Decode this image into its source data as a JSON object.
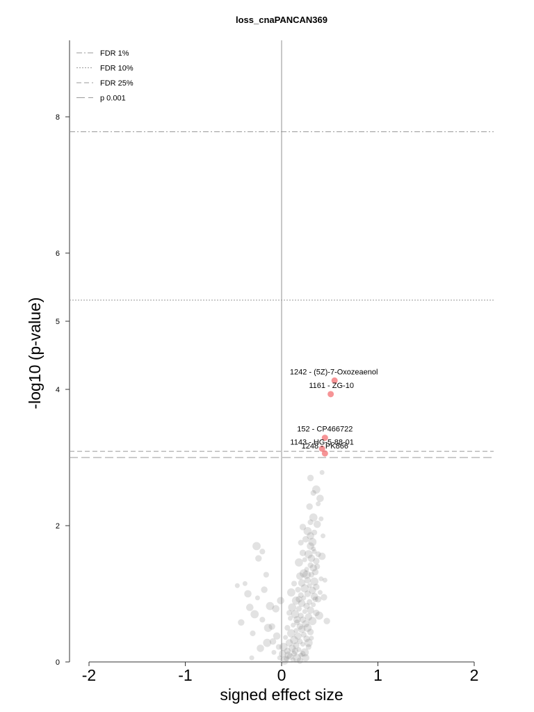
{
  "chart_data": {
    "type": "scatter",
    "title": "loss_cnaPANCAN369",
    "xlabel": "signed effect size",
    "ylabel": "-log10 (p-value)",
    "xlim": [
      -2.2,
      2.2
    ],
    "ylim": [
      0,
      9
    ],
    "xticks": [
      -2,
      -1,
      0,
      1,
      2
    ],
    "yticks": [
      0,
      2,
      4,
      5,
      6,
      8
    ],
    "grid": false,
    "legend_position": "top-left",
    "thresholds": [
      {
        "name": "FDR 1%",
        "y": 7.78,
        "style": "dashdot"
      },
      {
        "name": "FDR 10%",
        "y": 5.31,
        "style": "dotted"
      },
      {
        "name": "FDR 25%",
        "y": 3.09,
        "style": "dashed"
      },
      {
        "name": "p 0.001",
        "y": 3.0,
        "style": "longdash"
      }
    ],
    "colors": {
      "significant": "#f4797c",
      "background": "#7a7a7a",
      "threshold": "#999999",
      "zero_line": "#c8c8c8"
    },
    "highlighted": [
      {
        "label": "1242 - (5Z)-7-Oxozeaenol",
        "x": 0.55,
        "y": 4.13
      },
      {
        "label": "1161 - ZG-10",
        "x": 0.51,
        "y": 3.93
      },
      {
        "label": "152 - CP466722",
        "x": 0.45,
        "y": 3.29
      },
      {
        "label": "1143 - HG-5-88-01",
        "x": 0.42,
        "y": 3.13
      },
      {
        "label": "1248 - PK866",
        "x": 0.45,
        "y": 3.06
      }
    ],
    "background_points": [
      [
        0.42,
        2.78
      ],
      [
        0.3,
        2.7
      ],
      [
        0.36,
        2.53
      ],
      [
        0.33,
        2.48
      ],
      [
        0.4,
        2.4
      ],
      [
        0.38,
        2.32
      ],
      [
        0.29,
        2.28
      ],
      [
        0.33,
        2.12
      ],
      [
        0.3,
        2.05
      ],
      [
        0.37,
        2.02
      ],
      [
        0.41,
        2.1
      ],
      [
        0.22,
        1.98
      ],
      [
        0.27,
        1.92
      ],
      [
        0.34,
        1.9
      ],
      [
        0.3,
        1.85
      ],
      [
        0.43,
        1.85
      ],
      [
        0.25,
        1.8
      ],
      [
        0.32,
        1.76
      ],
      [
        0.2,
        1.75
      ],
      [
        0.3,
        1.7
      ],
      [
        0.34,
        1.62
      ],
      [
        0.22,
        1.6
      ],
      [
        0.28,
        1.58
      ],
      [
        0.38,
        1.58
      ],
      [
        0.31,
        1.52
      ],
      [
        0.24,
        1.5
      ],
      [
        0.36,
        1.48
      ],
      [
        0.18,
        1.46
      ],
      [
        0.3,
        1.42
      ],
      [
        0.33,
        1.38
      ],
      [
        0.26,
        1.36
      ],
      [
        0.35,
        1.32
      ],
      [
        0.23,
        1.3
      ],
      [
        0.31,
        1.28
      ],
      [
        0.19,
        1.26
      ],
      [
        0.41,
        1.22
      ],
      [
        0.27,
        1.2
      ],
      [
        0.34,
        1.18
      ],
      [
        0.13,
        1.15
      ],
      [
        0.21,
        1.16
      ],
      [
        0.29,
        1.12
      ],
      [
        0.36,
        1.1
      ],
      [
        0.24,
        1.08
      ],
      [
        0.17,
        1.06
      ],
      [
        0.32,
        1.05
      ],
      [
        0.4,
        1.02
      ],
      [
        0.27,
        1.0
      ],
      [
        0.1,
        1.02
      ],
      [
        0.2,
        0.98
      ],
      [
        0.34,
        0.96
      ],
      [
        0.23,
        0.94
      ],
      [
        0.38,
        0.92
      ],
      [
        0.15,
        0.9
      ],
      [
        0.29,
        0.88
      ],
      [
        0.21,
        0.86
      ],
      [
        0.33,
        0.84
      ],
      [
        0.26,
        0.82
      ],
      [
        0.11,
        0.8
      ],
      [
        0.18,
        0.78
      ],
      [
        0.3,
        0.76
      ],
      [
        0.24,
        0.74
      ],
      [
        0.36,
        0.72
      ],
      [
        0.14,
        0.7
      ],
      [
        0.2,
        0.68
      ],
      [
        0.28,
        0.66
      ],
      [
        0.09,
        0.64
      ],
      [
        0.22,
        0.62
      ],
      [
        0.32,
        0.6
      ],
      [
        0.16,
        0.58
      ],
      [
        0.25,
        0.56
      ],
      [
        0.12,
        0.54
      ],
      [
        0.19,
        0.52
      ],
      [
        0.27,
        0.5
      ],
      [
        0.06,
        0.5
      ],
      [
        0.21,
        0.48
      ],
      [
        0.15,
        0.46
      ],
      [
        0.3,
        0.44
      ],
      [
        0.1,
        0.42
      ],
      [
        0.23,
        0.4
      ],
      [
        0.17,
        0.38
      ],
      [
        0.04,
        0.36
      ],
      [
        0.26,
        0.34
      ],
      [
        0.13,
        0.32
      ],
      [
        0.19,
        0.3
      ],
      [
        0.08,
        0.28
      ],
      [
        0.22,
        0.26
      ],
      [
        0.15,
        0.24
      ],
      [
        0.02,
        0.22
      ],
      [
        0.28,
        0.22
      ],
      [
        0.11,
        0.2
      ],
      [
        0.18,
        0.18
      ],
      [
        0.06,
        0.16
      ],
      [
        0.24,
        0.14
      ],
      [
        0.13,
        0.12
      ],
      [
        0.01,
        0.12
      ],
      [
        0.2,
        0.1
      ],
      [
        0.09,
        0.08
      ],
      [
        0.16,
        0.06
      ],
      [
        0.05,
        0.05
      ],
      [
        0.25,
        0.06
      ],
      [
        0.12,
        0.03
      ],
      [
        0.19,
        0.02
      ],
      [
        0.03,
        0.02
      ],
      [
        0.22,
        0.12
      ],
      [
        0.07,
        0.1
      ],
      [
        -0.02,
        0.06
      ],
      [
        0.14,
        0.16
      ],
      [
        0.28,
        0.28
      ],
      [
        0.35,
        0.92
      ],
      [
        0.16,
        0.62
      ],
      [
        0.31,
        0.35
      ],
      [
        0.18,
        0.92
      ],
      [
        0.26,
        1.28
      ],
      [
        0.37,
        1.4
      ],
      [
        0.42,
        1.55
      ],
      [
        0.33,
        1.66
      ],
      [
        0.44,
        0.95
      ],
      [
        0.39,
        0.68
      ],
      [
        0.08,
        0.72
      ],
      [
        -0.05,
        0.38
      ],
      [
        -0.08,
        0.14
      ],
      [
        -0.1,
        0.52
      ],
      [
        -0.15,
        0.28
      ],
      [
        -0.2,
        0.62
      ],
      [
        -0.22,
        0.2
      ],
      [
        -0.25,
        0.94
      ],
      [
        -0.18,
        1.06
      ],
      [
        -0.28,
        0.7
      ],
      [
        -0.3,
        0.42
      ],
      [
        -0.33,
        0.8
      ],
      [
        -0.38,
        1.15
      ],
      [
        -0.42,
        0.58
      ],
      [
        -0.12,
        0.82
      ],
      [
        -0.16,
        1.28
      ],
      [
        -0.06,
        0.78
      ],
      [
        -0.31,
        0.06
      ],
      [
        -0.24,
        1.52
      ],
      [
        -0.26,
        1.7
      ],
      [
        -0.2,
        1.62
      ],
      [
        -0.35,
        1.0
      ],
      [
        -0.46,
        1.12
      ],
      [
        -0.09,
        0.3
      ],
      [
        -0.14,
        0.5
      ],
      [
        -0.03,
        0.22
      ],
      [
        -0.01,
        0.9
      ],
      [
        0.45,
        1.2
      ],
      [
        0.47,
        0.6
      ]
    ]
  }
}
